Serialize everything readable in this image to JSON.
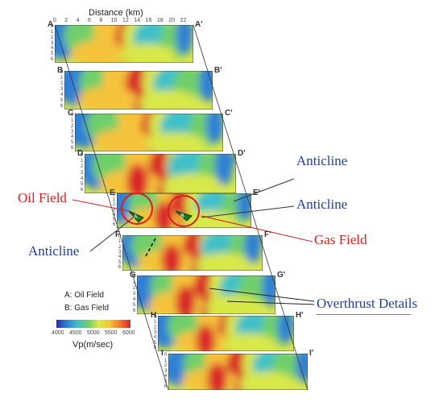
{
  "figure": {
    "axis_title": "Distance (km)",
    "x_ticks": [
      "0",
      "2",
      "4",
      "6",
      "8",
      "10",
      "12",
      "14",
      "16",
      "18",
      "20",
      "22"
    ],
    "depth_ticks": [
      "0",
      "1",
      "2",
      "3",
      "4",
      "5",
      "6"
    ],
    "sections": [
      {
        "start": "A",
        "end": "A'"
      },
      {
        "start": "B",
        "end": "B'"
      },
      {
        "start": "C",
        "end": "C'"
      },
      {
        "start": "D",
        "end": "D'"
      },
      {
        "start": "E",
        "end": "E'"
      },
      {
        "start": "F",
        "end": "F'"
      },
      {
        "start": "G",
        "end": "G'"
      },
      {
        "start": "H",
        "end": "H'"
      },
      {
        "start": "I",
        "end": "I'"
      }
    ],
    "legend": {
      "key_a": "A: Oil Field",
      "key_b": "B: Gas Field",
      "scale_ticks": [
        "4000",
        "4500",
        "5000",
        "5500",
        "6000"
      ],
      "unit": "Vp(m/sec)",
      "colors": [
        "#2a2f9c",
        "#2f7fd6",
        "#3fc0c8",
        "#6fcf6a",
        "#d8e84a",
        "#f5c33a",
        "#ee7a2a",
        "#d9262a"
      ]
    },
    "marker_labels": [
      "A",
      "B"
    ]
  },
  "annotations": {
    "anticline_1": "Anticline",
    "anticline_2": "Anticline",
    "anticline_3": "Anticline",
    "oil_field": "Oil Field",
    "gas_field": "Gas Field",
    "overthrust": "Overthrust Details"
  },
  "colors": {
    "annotation_blue": "#1f3f9b",
    "annotation_red": "#d91e1e"
  }
}
